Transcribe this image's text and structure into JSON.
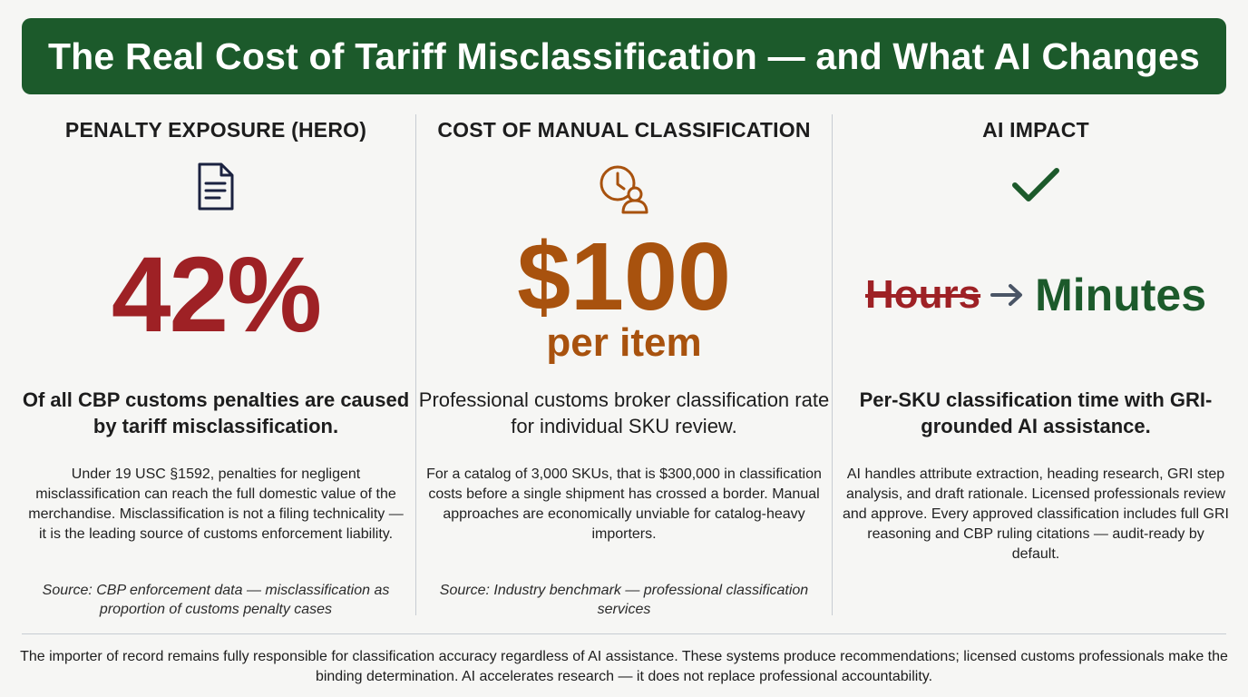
{
  "title": "The Real Cost of Tariff Misclassification — and What AI Changes",
  "columns": [
    {
      "heading": "PENALTY EXPOSURE (HERO)",
      "icon": "document-icon",
      "stat": "42%",
      "lead": "Of all CBP customs penalties are caused by tariff misclassification.",
      "body": "Under 19 USC §1592, penalties for negligent misclassification can reach the full domestic value of the merchandise. Misclassification is not a filing technicality — it is the leading source of customs enforcement liability.",
      "source": "Source: CBP enforcement data — misclassification as proportion of customs penalty cases"
    },
    {
      "heading": "COST OF MANUAL CLASSIFICATION",
      "icon": "clock-person-icon",
      "stat": "$100",
      "stat_sub": "per item",
      "lead": "Professional customs broker classification rate for individual SKU review.",
      "body": "For a catalog of 3,000 SKUs, that is $300,000 in classification costs before a single shipment has crossed a border. Manual approaches are economically unviable for catalog-heavy importers.",
      "source": "Source: Industry benchmark — professional classification services"
    },
    {
      "heading": "AI IMPACT",
      "icon": "checkmark-icon",
      "stat_before": "Hours",
      "stat_after": "Minutes",
      "lead": "Per-SKU classification time with GRI-grounded AI assistance.",
      "body": "AI handles attribute extraction, heading research, GRI step analysis, and draft rationale. Licensed professionals review and approve. Every approved classification includes full GRI reasoning and CBP ruling citations — audit-ready by default."
    }
  ],
  "footer": "The importer of record remains fully responsible for classification accuracy regardless of AI assistance. These systems produce recommendations; licensed customs professionals make the binding determination. AI accelerates research — it does not replace professional accountability.",
  "colors": {
    "banner": "#1c5a2b",
    "penalty_red": "#9e2125",
    "cost_orange": "#a8520e",
    "ai_green": "#1c5a2b"
  }
}
